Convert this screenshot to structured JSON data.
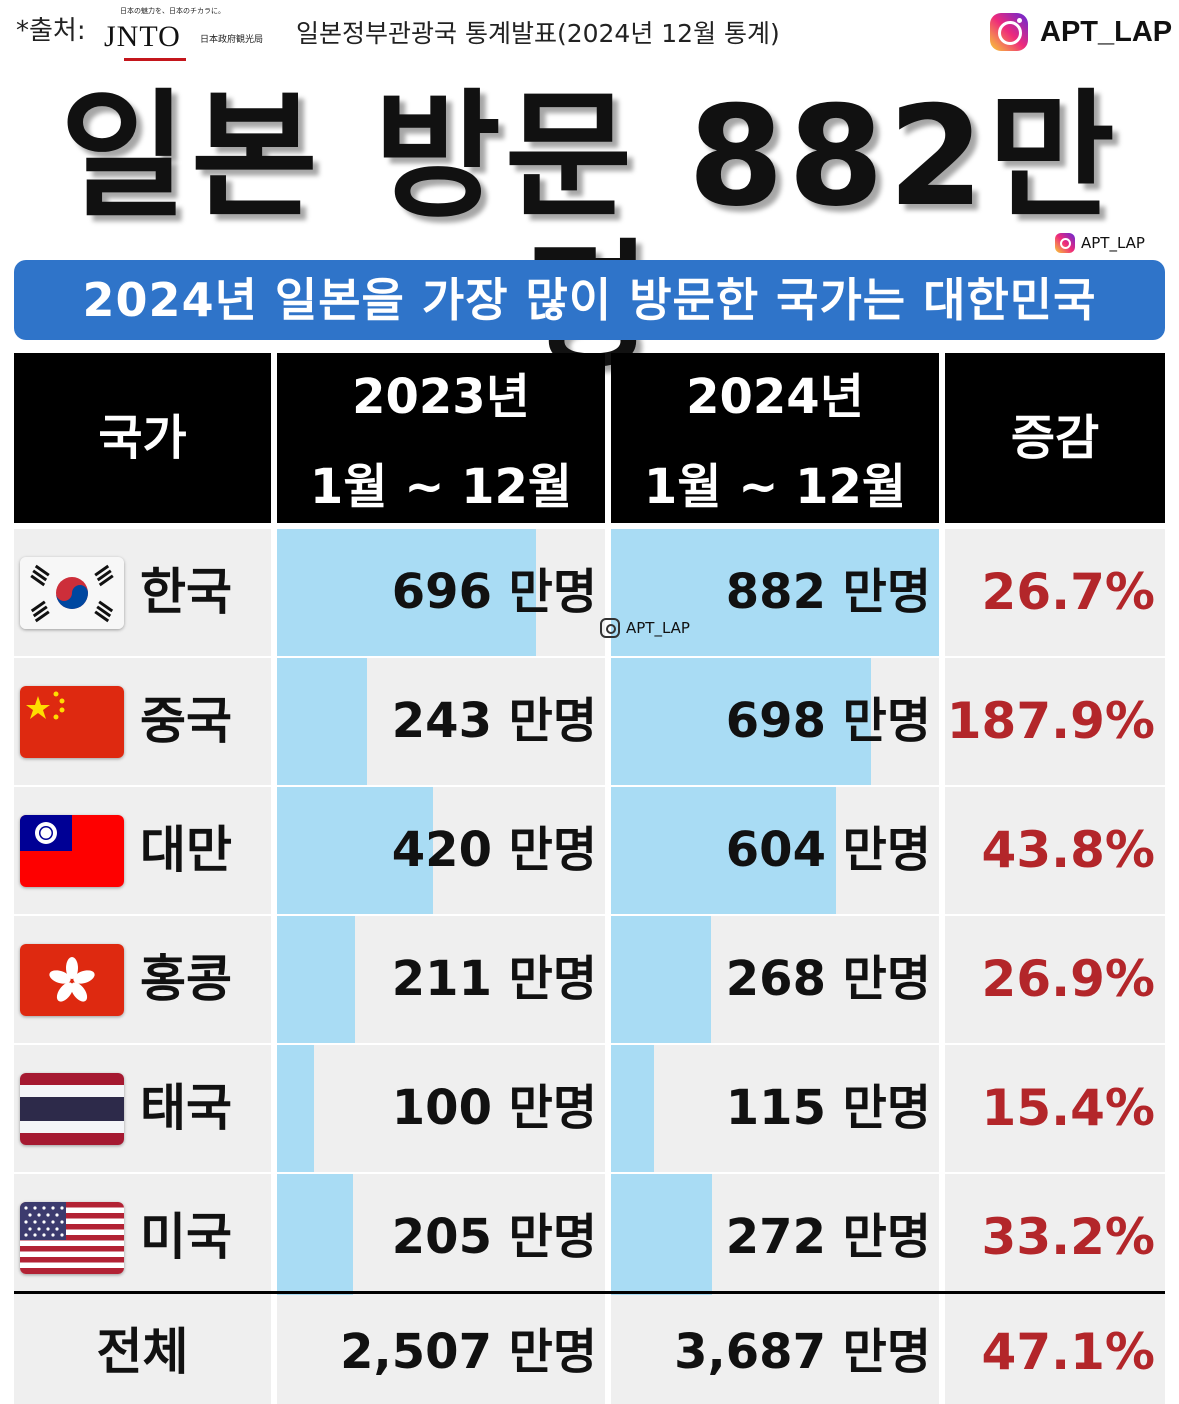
{
  "header": {
    "source_label": "*출처:",
    "jnto_tagline": "日本の魅力を、日本のチカラに。",
    "jnto_logo": "JNTO",
    "jnto_org": "日本政府観光局",
    "source_text": "일본정부관광국 통계발표(2024년 12월 통계)",
    "instagram_handle": "APT_LAP"
  },
  "headline": "일본 방문 882만명",
  "watermark": "APT_LAP",
  "banner": "2024년 일본을 가장 많이 방문한 국가는 대한민국",
  "colors": {
    "banner": "#2f74c9",
    "bar": "#a9dcf4",
    "pct": "#b3262a",
    "header_bg": "#000000",
    "cell_bg": "#efefef"
  },
  "chart_data": {
    "type": "table",
    "columns": [
      "국가",
      "2023년 1월 ~ 12월",
      "2024년 1월 ~ 12월",
      "증감"
    ],
    "header": {
      "country": "국가",
      "y2023_line1": "2023년",
      "y2023_line2": "1월 ~ 12월",
      "y2024_line1": "2024년",
      "y2024_line2": "1월 ~ 12월",
      "change": "증감"
    },
    "unit": "만명",
    "bar_scale_max": 882,
    "rows": [
      {
        "country": "한국",
        "flag": "south-korea-flag",
        "v2023": 696,
        "v2024": 882,
        "l2023": "696 만명",
        "l2024": "882 만명",
        "change": "26.7%"
      },
      {
        "country": "중국",
        "flag": "china-flag",
        "v2023": 243,
        "v2024": 698,
        "l2023": "243 만명",
        "l2024": "698 만명",
        "change": "187.9%"
      },
      {
        "country": "대만",
        "flag": "taiwan-flag",
        "v2023": 420,
        "v2024": 604,
        "l2023": "420 만명",
        "l2024": "604 만명",
        "change": "43.8%"
      },
      {
        "country": "홍콩",
        "flag": "hong-kong-flag",
        "v2023": 211,
        "v2024": 268,
        "l2023": "211 만명",
        "l2024": "268 만명",
        "change": "26.9%"
      },
      {
        "country": "태국",
        "flag": "thailand-flag",
        "v2023": 100,
        "v2024": 115,
        "l2023": "100 만명",
        "l2024": "115 만명",
        "change": "15.4%"
      },
      {
        "country": "미국",
        "flag": "usa-flag",
        "v2023": 205,
        "v2024": 272,
        "l2023": "205 만명",
        "l2024": "272 만명",
        "change": "33.2%"
      }
    ],
    "total": {
      "label": "전체",
      "l2023": "2,507 만명",
      "l2024": "3,687 만명",
      "change": "47.1%"
    }
  }
}
